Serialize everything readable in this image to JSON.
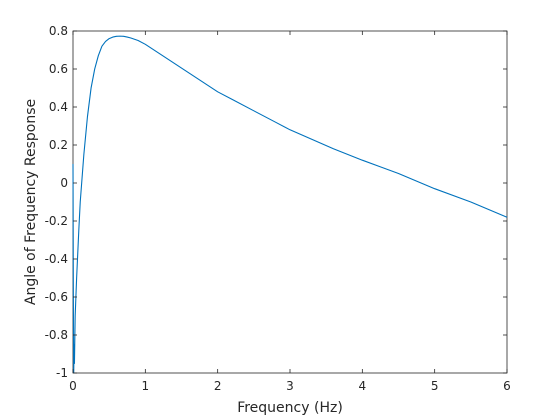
{
  "chart_data": {
    "type": "line",
    "title": "",
    "xlabel": "Frequency (Hz)",
    "ylabel": "Angle of Frequency Response",
    "xlim": [
      0,
      6
    ],
    "ylim": [
      -1,
      0.8
    ],
    "grid": false,
    "box": true,
    "xticks": [
      0,
      1,
      2,
      3,
      4,
      5,
      6
    ],
    "xtick_labels": [
      "0",
      "1",
      "2",
      "3",
      "4",
      "5",
      "6"
    ],
    "yticks": [
      -1,
      -0.8,
      -0.6,
      -0.4,
      -0.2,
      0,
      0.2,
      0.4,
      0.6,
      0.8
    ],
    "ytick_labels": [
      "-1",
      "-0.8",
      "-0.6",
      "-0.4",
      "-0.2",
      "0",
      "0.2",
      "0.4",
      "0.6",
      "0.8"
    ],
    "line_color": "#0072BD",
    "axis_color": "#262626",
    "series": [
      {
        "x": [
          0,
          0.005,
          0.01,
          0.015,
          0.02,
          0.03,
          0.05,
          0.08,
          0.1,
          0.15,
          0.2,
          0.25,
          0.3,
          0.35,
          0.4,
          0.45,
          0.5,
          0.55,
          0.6,
          0.65,
          0.7,
          0.75,
          0.8,
          0.9,
          1.0,
          1.1,
          1.2,
          1.4,
          1.6,
          1.8,
          2.0,
          2.2,
          2.5,
          2.8,
          3.0,
          3.3,
          3.6,
          4.0,
          4.5,
          5.0,
          5.5,
          6.0
        ],
        "y": [
          0.1,
          -0.6,
          -1.0,
          -0.85,
          -0.95,
          -0.7,
          -0.5,
          -0.25,
          -0.1,
          0.15,
          0.35,
          0.5,
          0.6,
          0.67,
          0.72,
          0.745,
          0.76,
          0.768,
          0.772,
          0.773,
          0.772,
          0.768,
          0.763,
          0.75,
          0.73,
          0.705,
          0.68,
          0.63,
          0.58,
          0.53,
          0.48,
          0.44,
          0.38,
          0.32,
          0.28,
          0.23,
          0.18,
          0.12,
          0.05,
          -0.03,
          -0.1,
          -0.18
        ]
      }
    ]
  }
}
